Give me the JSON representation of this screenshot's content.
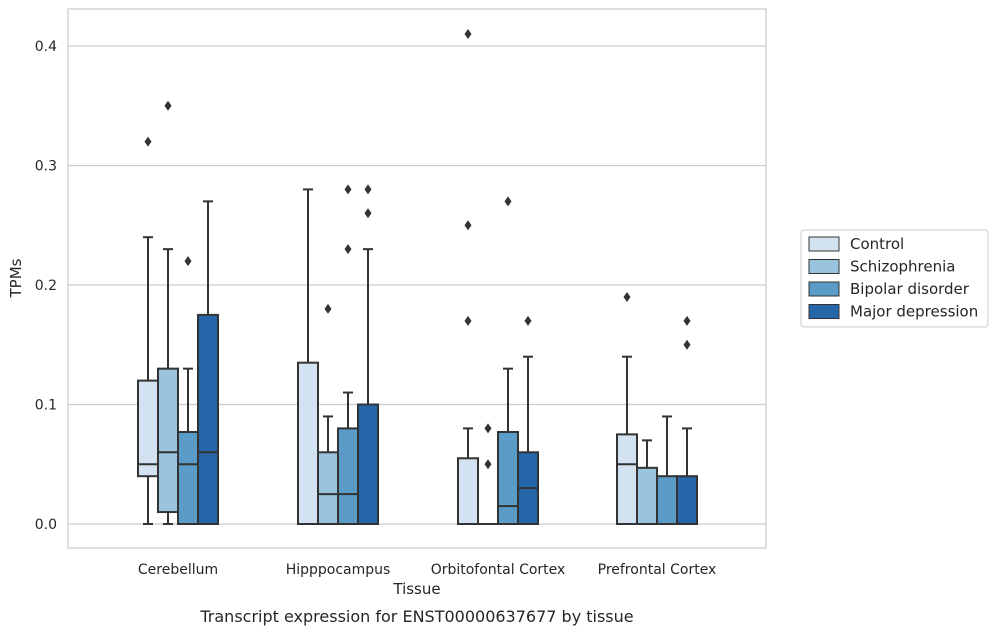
{
  "caption": "Transcript expression for ENST00000637677 by tissue",
  "chart_data": {
    "type": "box",
    "xlabel": "Tissue",
    "ylabel": "TPMs",
    "ylim": [
      -0.02,
      0.43
    ],
    "yticks": [
      "0.0",
      "0.1",
      "0.2",
      "0.3",
      "0.4"
    ],
    "ytick_values": [
      0,
      0.1,
      0.2,
      0.3,
      0.4
    ],
    "grid": true,
    "legend_position": "right",
    "categories": [
      "Cerebellum",
      "Hipppocampus",
      "Orbitofontal Cortex",
      "Prefrontal Cortex"
    ],
    "series": [
      {
        "name": "Control",
        "color": "#d2e2f0",
        "boxes": [
          {
            "min": 0,
            "q1": 0.04,
            "median": 0.05,
            "q3": 0.12,
            "max": 0.24,
            "outliers": [
              0.32
            ]
          },
          {
            "min": 0,
            "q1": 0,
            "median": 0,
            "q3": 0.135,
            "max": 0.28,
            "outliers": []
          },
          {
            "min": 0,
            "q1": 0,
            "median": 0,
            "q3": 0.055,
            "max": 0.08,
            "outliers": [
              0.17,
              0.25,
              0.41
            ]
          },
          {
            "min": 0,
            "q1": 0,
            "median": 0.05,
            "q3": 0.075,
            "max": 0.14,
            "outliers": [
              0.19
            ]
          }
        ]
      },
      {
        "name": "Schizophrenia",
        "color": "#9ac4dd",
        "boxes": [
          {
            "min": 0,
            "q1": 0.01,
            "median": 0.06,
            "q3": 0.13,
            "max": 0.23,
            "outliers": [
              0.35
            ]
          },
          {
            "min": 0,
            "q1": 0,
            "median": 0.025,
            "q3": 0.06,
            "max": 0.09,
            "outliers": [
              0.18
            ]
          },
          {
            "min": 0,
            "q1": 0,
            "median": 0,
            "q3": 0,
            "max": 0,
            "outliers": [
              0.05,
              0.08
            ]
          },
          {
            "min": 0,
            "q1": 0,
            "median": 0,
            "q3": 0.047,
            "max": 0.07,
            "outliers": []
          }
        ]
      },
      {
        "name": "Bipolar disorder",
        "color": "#5b9bc8",
        "boxes": [
          {
            "min": 0,
            "q1": 0,
            "median": 0.05,
            "q3": 0.077,
            "max": 0.13,
            "outliers": [
              0.22
            ]
          },
          {
            "min": 0,
            "q1": 0,
            "median": 0.025,
            "q3": 0.08,
            "max": 0.11,
            "outliers": [
              0.23,
              0.28
            ]
          },
          {
            "min": 0,
            "q1": 0,
            "median": 0.015,
            "q3": 0.077,
            "max": 0.13,
            "outliers": [
              0.27
            ]
          },
          {
            "min": 0,
            "q1": 0,
            "median": 0,
            "q3": 0.04,
            "max": 0.09,
            "outliers": []
          }
        ]
      },
      {
        "name": "Major depression",
        "color": "#2466a8",
        "boxes": [
          {
            "min": 0,
            "q1": 0,
            "median": 0.06,
            "q3": 0.175,
            "max": 0.27,
            "outliers": []
          },
          {
            "min": 0,
            "q1": 0,
            "median": 0,
            "q3": 0.1,
            "max": 0.23,
            "outliers": [
              0.26,
              0.28
            ]
          },
          {
            "min": 0,
            "q1": 0,
            "median": 0.03,
            "q3": 0.06,
            "max": 0.14,
            "outliers": [
              0.17
            ]
          },
          {
            "min": 0,
            "q1": 0,
            "median": 0,
            "q3": 0.04,
            "max": 0.08,
            "outliers": [
              0.15,
              0.17
            ]
          }
        ]
      }
    ]
  }
}
